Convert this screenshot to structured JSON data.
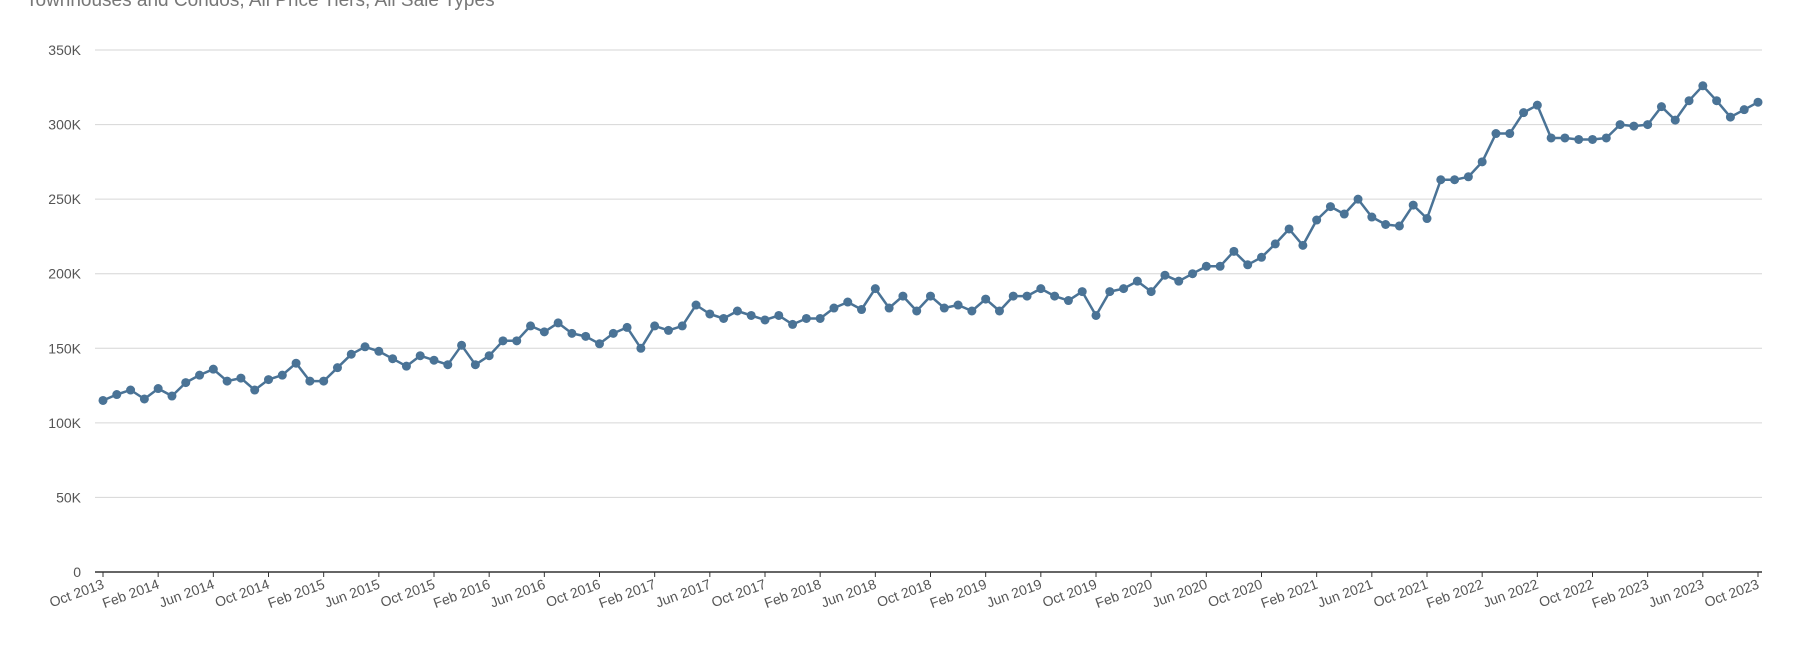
{
  "subtitle": "Townhouses and Condos, All Price Tiers, All Sale Types",
  "chart_data": {
    "type": "line",
    "title": "",
    "subtitle": "Townhouses and Condos, All Price Tiers, All Sale Types",
    "xlabel": "",
    "ylabel": "",
    "ylim": [
      0,
      350000
    ],
    "y_ticks": [
      0,
      50000,
      100000,
      150000,
      200000,
      250000,
      300000,
      350000
    ],
    "y_tick_labels": [
      "0",
      "50K",
      "100K",
      "150K",
      "200K",
      "250K",
      "300K",
      "350K"
    ],
    "x_tick_labels": [
      "Oct 2013",
      "Feb 2014",
      "Jun 2014",
      "Oct 2014",
      "Feb 2015",
      "Jun 2015",
      "Oct 2015",
      "Feb 2016",
      "Jun 2016",
      "Oct 2016",
      "Feb 2017",
      "Jun 2017",
      "Oct 2017",
      "Feb 2018",
      "Jun 2018",
      "Oct 2018",
      "Feb 2019",
      "Jun 2019",
      "Oct 2019",
      "Feb 2020",
      "Jun 2020",
      "Oct 2020",
      "Feb 2021",
      "Jun 2021",
      "Oct 2021",
      "Feb 2022",
      "Jun 2022",
      "Oct 2022",
      "Feb 2023",
      "Jun 2023",
      "Oct 2023"
    ],
    "x_start": "Oct 2013",
    "x_end": "Oct 2023",
    "grid": true,
    "legend": "none",
    "colors": {
      "line": "#4a7396",
      "grid": "#d6d6d6",
      "axis": "#333333",
      "text": "#555555"
    },
    "series": [
      {
        "values": [
          115000,
          119000,
          122000,
          116000,
          123000,
          118000,
          127000,
          132000,
          136000,
          128000,
          130000,
          122000,
          129000,
          132000,
          140000,
          128000,
          128000,
          137000,
          146000,
          151000,
          148000,
          143000,
          138000,
          145000,
          142000,
          139000,
          152000,
          139000,
          145000,
          155000,
          155000,
          165000,
          161000,
          167000,
          160000,
          158000,
          153000,
          160000,
          164000,
          150000,
          165000,
          162000,
          165000,
          179000,
          173000,
          170000,
          175000,
          172000,
          169000,
          172000,
          166000,
          170000,
          170000,
          177000,
          181000,
          176000,
          190000,
          177000,
          185000,
          175000,
          185000,
          177000,
          179000,
          175000,
          183000,
          175000,
          185000,
          185000,
          190000,
          185000,
          182000,
          188000,
          172000,
          188000,
          190000,
          195000,
          188000,
          199000,
          195000,
          200000,
          205000,
          205000,
          215000,
          206000,
          211000,
          220000,
          230000,
          219000,
          236000,
          245000,
          240000,
          250000,
          238000,
          233000,
          232000,
          246000,
          237000,
          263000,
          263000,
          265000,
          275000,
          294000,
          294000,
          308000,
          313000,
          291000,
          291000,
          290000,
          290000,
          291000,
          300000,
          299000,
          300000,
          312000,
          303000,
          316000,
          326000,
          316000,
          305000,
          310000,
          315000
        ]
      }
    ]
  }
}
